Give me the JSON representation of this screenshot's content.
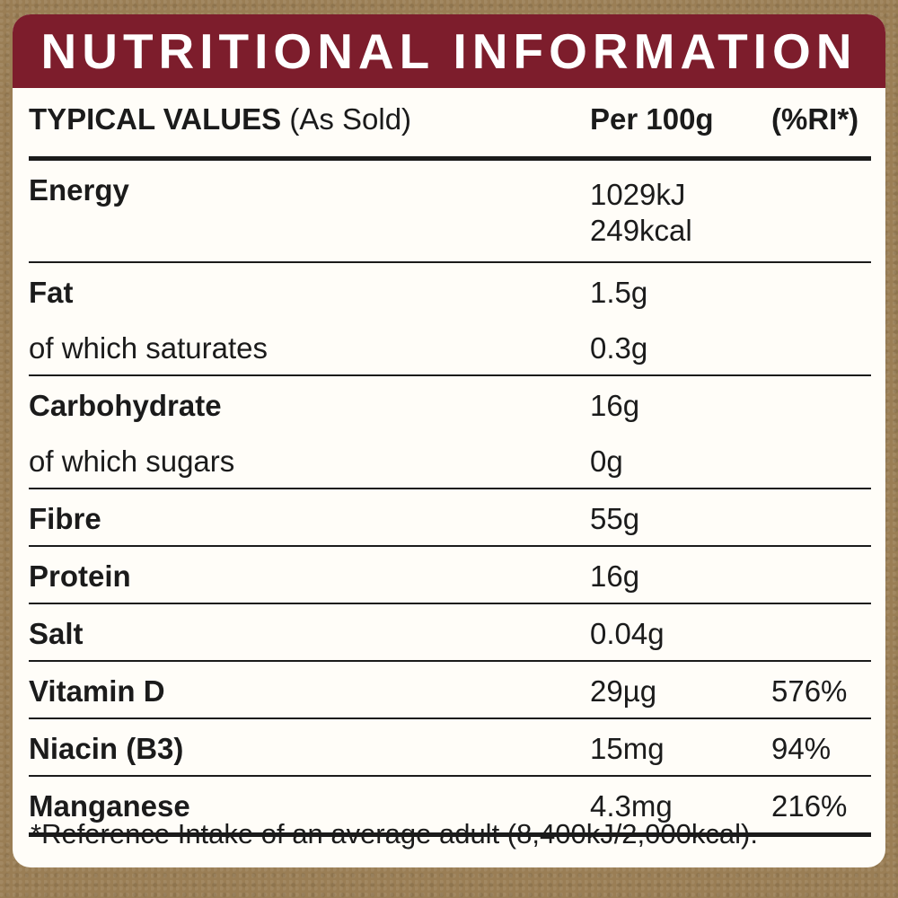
{
  "title": "NUTRITIONAL INFORMATION",
  "header": {
    "typical_values": "TYPICAL VALUES",
    "as_sold": " (As Sold)",
    "per_100g": "Per 100g",
    "ri": "(%RI*)"
  },
  "energy": {
    "name": "Energy",
    "kj": "1029kJ",
    "kcal": "249kcal"
  },
  "rows": [
    {
      "name": "Fat",
      "value": "1.5g",
      "ri": ""
    },
    {
      "name": "of which saturates",
      "value": "0.3g",
      "ri": ""
    },
    {
      "name": "Carbohydrate",
      "value": "16g",
      "ri": ""
    },
    {
      "name": "of which sugars",
      "value": "0g",
      "ri": ""
    },
    {
      "name": "Fibre",
      "value": "55g",
      "ri": ""
    },
    {
      "name": "Protein",
      "value": "16g",
      "ri": ""
    },
    {
      "name": "Salt",
      "value": "0.04g",
      "ri": ""
    },
    {
      "name": "Vitamin D",
      "value": "29µg",
      "ri": "576%"
    },
    {
      "name": "Niacin (B3)",
      "value": "15mg",
      "ri": "94%"
    },
    {
      "name": "Manganese",
      "value": "4.3mg",
      "ri": "216%"
    }
  ],
  "footnote": "*Reference Intake of an average adult (8,400kJ/2,000kcal).",
  "colors": {
    "banner": "#7d1d2c",
    "background": "#9a7e55",
    "card": "#fffdf8"
  }
}
